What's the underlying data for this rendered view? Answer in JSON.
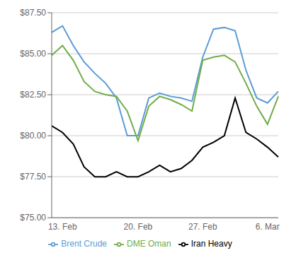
{
  "chart_data": {
    "type": "line",
    "title": "",
    "categories": [
      null,
      "13. Feb",
      null,
      null,
      null,
      null,
      null,
      null,
      "20. Feb",
      null,
      null,
      null,
      null,
      null,
      "27. Feb",
      null,
      null,
      null,
      null,
      null,
      "6. Mar",
      null
    ],
    "series": [
      {
        "name": "Brent Crude",
        "color": "#5B9BD5",
        "values": [
          86.3,
          86.7,
          85.5,
          84.5,
          83.8,
          83.2,
          82.3,
          80.0,
          80.0,
          82.3,
          82.6,
          82.4,
          82.3,
          82.1,
          84.8,
          86.5,
          86.6,
          86.4,
          84.0,
          82.3,
          82.0,
          82.7
        ]
      },
      {
        "name": "Iran Heavy",
        "color": "#000000",
        "values": [
          80.6,
          80.2,
          79.5,
          78.1,
          77.5,
          77.5,
          77.8,
          77.5,
          77.5,
          77.8,
          78.2,
          77.8,
          78.0,
          78.5,
          79.3,
          79.6,
          80.0,
          82.3,
          80.2,
          79.8,
          79.3,
          78.7
        ]
      },
      {
        "name": "DME Oman",
        "color": "#70AD47",
        "values": [
          84.9,
          85.5,
          84.6,
          83.3,
          82.7,
          82.5,
          82.4,
          81.5,
          79.7,
          81.8,
          82.4,
          82.2,
          81.9,
          81.5,
          84.6,
          84.8,
          84.9,
          84.5,
          83.2,
          81.8,
          80.7,
          82.4
        ]
      }
    ],
    "ylim": [
      75.0,
      87.5
    ],
    "yticks": [
      {
        "value": 75.0,
        "label": "$75.00"
      },
      {
        "value": 77.5,
        "label": "$77.50"
      },
      {
        "value": 80.0,
        "label": "$80.00"
      },
      {
        "value": 82.5,
        "label": "$82.50"
      },
      {
        "value": 85.0,
        "label": "$85.00"
      },
      {
        "value": 87.5,
        "label": "$87.50"
      }
    ],
    "grid": true,
    "legend": "bottom"
  }
}
